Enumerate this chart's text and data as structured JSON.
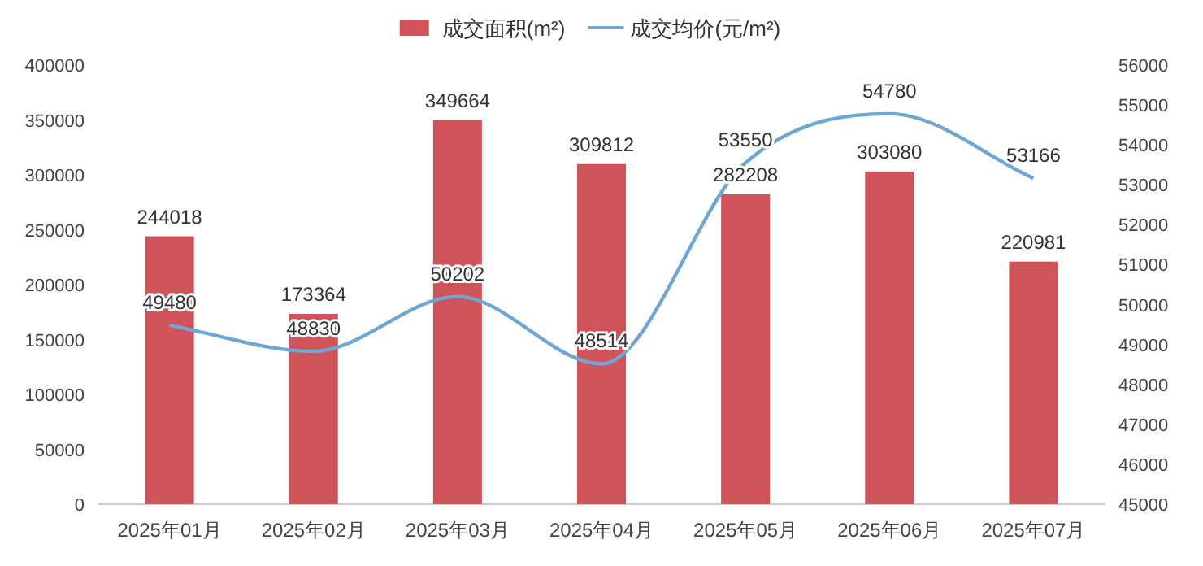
{
  "chart_data": {
    "type": "bar",
    "categories": [
      "2025年01月",
      "2025年02月",
      "2025年03月",
      "2025年04月",
      "2025年05月",
      "2025年06月",
      "2025年07月"
    ],
    "series": [
      {
        "name": "成交面积(m²)",
        "color": "#d0535a",
        "values": [
          244018,
          173364,
          349664,
          309812,
          282208,
          303080,
          220981
        ]
      },
      {
        "name": "成交均价(元/m²)",
        "type": "line",
        "axis": "y2",
        "color": "#6ea6d4",
        "values": [
          49480,
          48830,
          50202,
          48514,
          53550,
          54780,
          53166
        ]
      }
    ],
    "ylim": [
      0,
      400000
    ],
    "yticks": [
      0,
      50000,
      100000,
      150000,
      200000,
      250000,
      300000,
      350000,
      400000
    ],
    "y2lim": [
      45000,
      56000
    ],
    "y2ticks": [
      45000,
      46000,
      47000,
      48000,
      49000,
      50000,
      51000,
      52000,
      53000,
      54000,
      55000,
      56000
    ],
    "data_labels": true,
    "legend": "top",
    "grid": false
  }
}
